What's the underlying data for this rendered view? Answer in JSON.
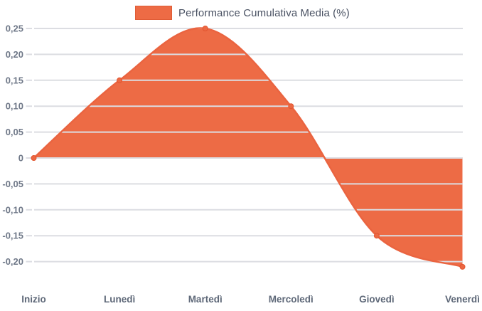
{
  "legend": {
    "label": "Performance Cumulativa Media (%)"
  },
  "chart_data": {
    "type": "area",
    "title": "",
    "xlabel": "",
    "ylabel": "",
    "categories": [
      "Inizio",
      "Lunedì",
      "Martedì",
      "Mercoledì",
      "Giovedì",
      "Venerdì"
    ],
    "series": [
      {
        "name": "Performance Cumulativa Media (%)",
        "values": [
          0,
          0.15,
          0.25,
          0.1,
          -0.15,
          -0.21
        ]
      }
    ],
    "y_ticks": [
      {
        "value": 0.25,
        "label": "0,25"
      },
      {
        "value": 0.2,
        "label": "0,20"
      },
      {
        "value": 0.15,
        "label": "0,15"
      },
      {
        "value": 0.1,
        "label": "0,10"
      },
      {
        "value": 0.05,
        "label": "0,05"
      },
      {
        "value": 0,
        "label": "0"
      },
      {
        "value": -0.05,
        "label": "-0,05"
      },
      {
        "value": -0.1,
        "label": "-0,10"
      },
      {
        "value": -0.15,
        "label": "-0,15"
      },
      {
        "value": -0.2,
        "label": "-0,20"
      }
    ],
    "ylim": [
      -0.21,
      0.25
    ],
    "grid": true,
    "legend_position": "top",
    "colors": {
      "fill": "#ED6B45",
      "line": "#EA6440",
      "point_fill": "#EC6843",
      "point_stroke": "#E2552F",
      "grid": "#DCDDE2",
      "y_label": "#6F7888",
      "x_label": "#5E6878",
      "legend_text": "#4A5263"
    }
  }
}
